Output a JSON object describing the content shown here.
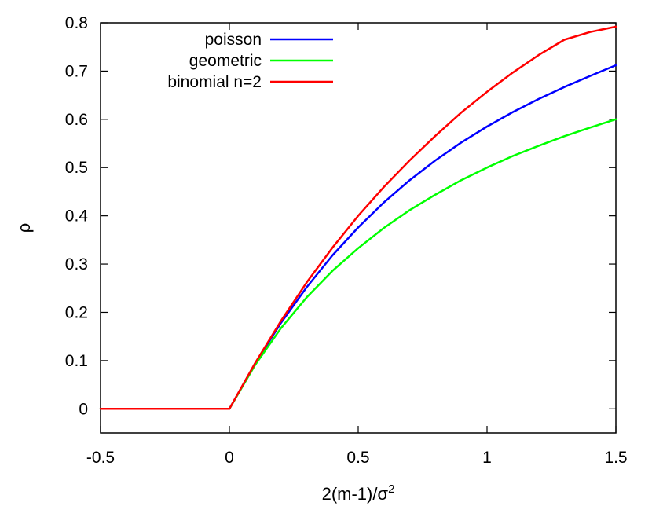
{
  "chart_data": {
    "type": "line",
    "title": "",
    "xlabel": "2(m-1)/σ",
    "xlabel_superscript": "2",
    "ylabel": "ρ",
    "xlim": [
      -0.5,
      1.5
    ],
    "ylim": [
      -0.05,
      0.8
    ],
    "xticks": [
      "-0.5",
      "0",
      "0.5",
      "1",
      "1.5"
    ],
    "yticks": [
      "0",
      "0.1",
      "0.2",
      "0.3",
      "0.4",
      "0.5",
      "0.6",
      "0.7",
      "0.8"
    ],
    "grid": false,
    "legend_position": "top-left",
    "series": [
      {
        "name": "poisson",
        "color": "#0000ff",
        "x": [
          -0.5,
          0,
          0.1,
          0.2,
          0.3,
          0.4,
          0.5,
          0.6,
          0.7,
          0.8,
          0.9,
          1.0,
          1.1,
          1.2,
          1.3,
          1.4,
          1.5
        ],
        "y": [
          0,
          0,
          0.094,
          0.178,
          0.252,
          0.318,
          0.376,
          0.428,
          0.474,
          0.515,
          0.552,
          0.585,
          0.615,
          0.642,
          0.667,
          0.69,
          0.712
        ]
      },
      {
        "name": "geometric",
        "color": "#00ff00",
        "x": [
          -0.5,
          0,
          0.1,
          0.2,
          0.3,
          0.4,
          0.5,
          0.6,
          0.7,
          0.8,
          0.9,
          1.0,
          1.1,
          1.2,
          1.3,
          1.4,
          1.5
        ],
        "y": [
          0,
          0,
          0.091,
          0.167,
          0.231,
          0.286,
          0.333,
          0.375,
          0.412,
          0.444,
          0.474,
          0.5,
          0.524,
          0.545,
          0.565,
          0.583,
          0.6
        ]
      },
      {
        "name": "binomial n=2",
        "color": "#ff0000",
        "x": [
          -0.5,
          0,
          0.1,
          0.2,
          0.3,
          0.4,
          0.5,
          0.6,
          0.7,
          0.8,
          0.9,
          1.0,
          1.1,
          1.2,
          1.3,
          1.4,
          1.5
        ],
        "y": [
          0,
          0,
          0.095,
          0.182,
          0.262,
          0.334,
          0.4,
          0.46,
          0.515,
          0.566,
          0.614,
          0.657,
          0.697,
          0.733,
          0.765,
          0.781,
          0.792
        ]
      }
    ]
  }
}
